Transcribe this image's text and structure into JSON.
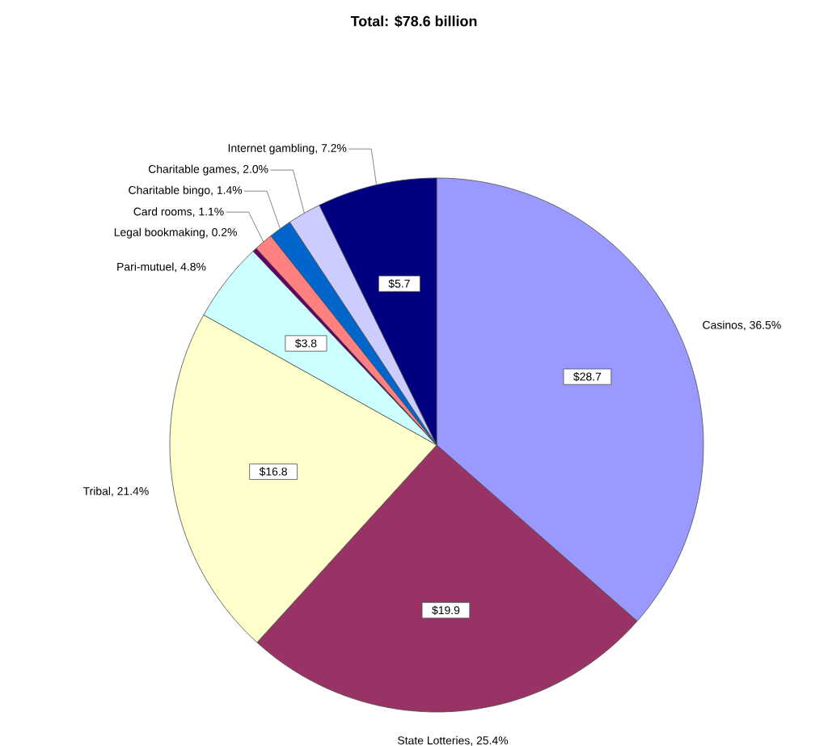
{
  "chart_data": {
    "type": "pie",
    "title": "Total: $78.6 billion",
    "categories": [
      "Casinos, 36.5%",
      "State Lotteries, 25.4%",
      "Tribal, 21.4%",
      "Pari-mutuel, 4.8%",
      "Legal bookmaking, 0.2%",
      "Card rooms, 1.1%",
      "Charitable bingo, 1.4%",
      "Charitable games, 2.0%",
      "Internet gambling, 7.2%"
    ],
    "values": [
      28.7,
      19.9,
      16.8,
      3.8,
      0.2,
      0.9,
      1.1,
      1.6,
      5.7
    ],
    "colors": [
      "#9999ff",
      "#993366",
      "#ffffcc",
      "#ccffff",
      "#660066",
      "#ff8080",
      "#0066cc",
      "#ccccff",
      "#000080"
    ],
    "value_labels": [
      "$28.7",
      "$19.9",
      "$16.8",
      "$3.8",
      null,
      null,
      null,
      null,
      "$5.7"
    ]
  }
}
